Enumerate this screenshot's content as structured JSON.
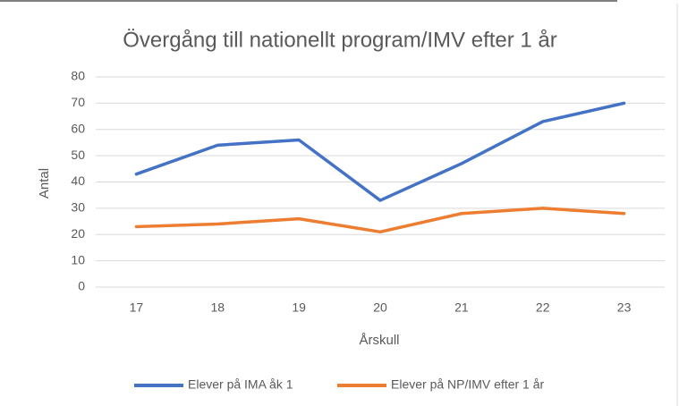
{
  "chart_data": {
    "type": "line",
    "title": "Övergång till nationellt program/IMV efter 1 år",
    "x_label": "Årskull",
    "y_label": "Antal",
    "categories": [
      "17",
      "18",
      "19",
      "20",
      "21",
      "22",
      "23"
    ],
    "series": [
      {
        "name": "Elever på IMA åk 1",
        "color": "#4472c4",
        "values": [
          43,
          54,
          56,
          33,
          47,
          63,
          70
        ]
      },
      {
        "name": "Elever på NP/IMV efter 1 år",
        "color": "#ed7d31",
        "values": [
          23,
          24,
          26,
          21,
          28,
          30,
          28
        ]
      }
    ],
    "ylim": [
      0,
      80
    ],
    "yticks": [
      0,
      10,
      20,
      30,
      40,
      50,
      60,
      70,
      80
    ],
    "grid": true,
    "legend": "bottom"
  }
}
